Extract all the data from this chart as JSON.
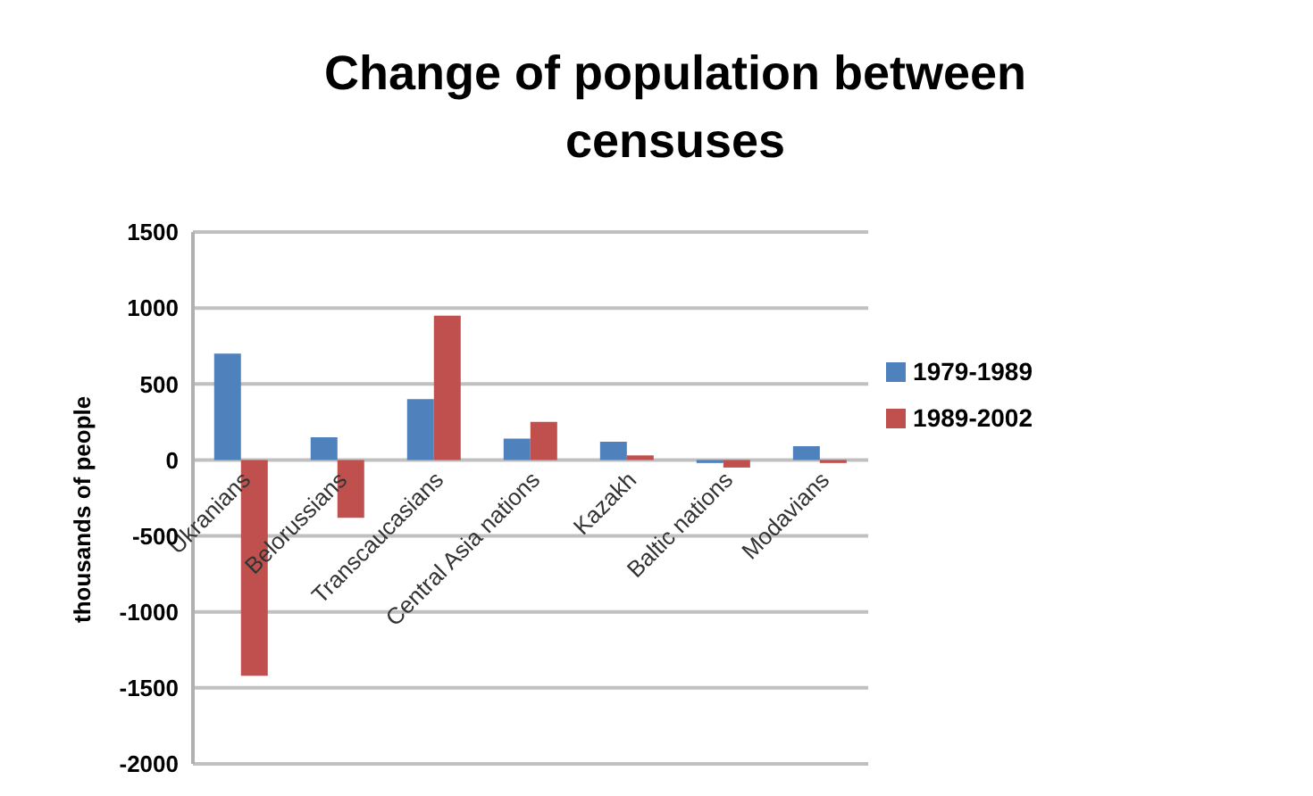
{
  "chart_data": {
    "type": "bar",
    "title": "Change of population between censuses",
    "ylabel": "thousands of people",
    "categories": [
      "Ukranians",
      "Belorussians",
      "Transcaucasians",
      "Central Asia nations",
      "Kazakh",
      "Baltic nations",
      "Modavians"
    ],
    "series": [
      {
        "name": "1979-1989",
        "color": "#4f81bd",
        "values": [
          700,
          150,
          400,
          140,
          120,
          -20,
          90
        ]
      },
      {
        "name": "1989-2002",
        "color": "#c0504d",
        "values": [
          -1420,
          -380,
          950,
          250,
          30,
          -50,
          -20
        ]
      }
    ],
    "ylim": [
      -2000,
      1500
    ],
    "yticks": [
      -2000,
      -1500,
      -1000,
      -500,
      0,
      500,
      1000,
      1500
    ],
    "grid": "y",
    "legend": "right"
  }
}
